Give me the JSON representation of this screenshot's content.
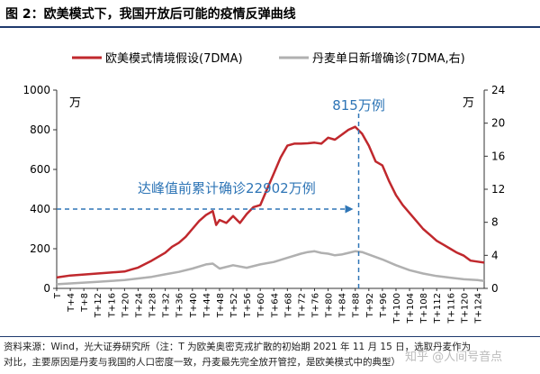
{
  "header": {
    "title": "图 2：欧美模式下，我国开放后可能的疫情反弹曲线"
  },
  "footer": {
    "line1": "资料来源：Wind，光大证券研究所（注：T 为欧美奥密克戎扩散的初始期 2021 年 11 月 15 日，选取丹麦作为",
    "line2": "对比，主要原因是丹麦与我国的人口密度一致，丹麦最先完全放开管控，是欧美模式中的典型）",
    "watermark": "知乎 @人间号音点"
  },
  "colors": {
    "red_series": "#c0282d",
    "gray_series": "#b0b0b0",
    "annotation": "#2e75b6",
    "axis": "#333333"
  },
  "chart_data": {
    "type": "line",
    "title": "图 2：欧美模式下，我国开放后可能的疫情反弹曲线",
    "left_unit": "万",
    "right_unit": "万",
    "left_ylim": [
      0,
      1000
    ],
    "left_yticks": [
      0,
      200,
      400,
      600,
      800,
      1000
    ],
    "right_ylim": [
      0,
      24
    ],
    "right_yticks": [
      0,
      4,
      8,
      12,
      16,
      20,
      24
    ],
    "x_range": [
      0,
      126
    ],
    "x_tick_labels": [
      "T",
      "T+4",
      "T+8",
      "T+12",
      "T+16",
      "T+20",
      "T+24",
      "T+28",
      "T+32",
      "T+36",
      "T+40",
      "T+44",
      "T+48",
      "T+52",
      "T+56",
      "T+60",
      "T+64",
      "T+68",
      "T+72",
      "T+76",
      "T+80",
      "T+84",
      "T+88",
      "T+92",
      "T+96",
      "T+100",
      "T+104",
      "T+108",
      "T+112",
      "T+116",
      "T+120",
      "T+124"
    ],
    "legend_position": "top",
    "series": [
      {
        "name": "欧美模式情境假设(7DMA)",
        "axis": "left",
        "color": "#c0282d",
        "x": [
          0,
          4,
          8,
          12,
          16,
          20,
          22,
          24,
          28,
          30,
          32,
          34,
          36,
          38,
          40,
          42,
          44,
          46,
          47,
          48,
          50,
          52,
          54,
          56,
          58,
          60,
          62,
          64,
          66,
          68,
          70,
          72,
          74,
          76,
          78,
          80,
          82,
          84,
          86,
          88,
          90,
          92,
          94,
          96,
          98,
          100,
          102,
          104,
          106,
          108,
          110,
          112,
          114,
          116,
          118,
          120,
          122,
          124,
          126
        ],
        "values": [
          55,
          65,
          70,
          75,
          80,
          85,
          95,
          105,
          140,
          160,
          180,
          210,
          230,
          260,
          300,
          340,
          370,
          390,
          320,
          345,
          330,
          365,
          330,
          375,
          410,
          420,
          500,
          580,
          660,
          720,
          730,
          730,
          732,
          735,
          730,
          760,
          750,
          775,
          800,
          815,
          780,
          720,
          640,
          620,
          540,
          470,
          420,
          380,
          340,
          300,
          270,
          240,
          220,
          200,
          180,
          165,
          140,
          135,
          130
        ]
      },
      {
        "name": "丹麦单日新增确诊(7DMA,右)",
        "axis": "right",
        "color": "#b0b0b0",
        "x": [
          0,
          4,
          8,
          12,
          16,
          20,
          24,
          28,
          32,
          36,
          40,
          44,
          46,
          48,
          52,
          56,
          60,
          64,
          68,
          72,
          74,
          76,
          78,
          80,
          82,
          84,
          86,
          88,
          90,
          92,
          96,
          100,
          104,
          108,
          112,
          116,
          120,
          124,
          126
        ],
        "values": [
          0.5,
          0.6,
          0.7,
          0.8,
          0.9,
          1.0,
          1.2,
          1.4,
          1.7,
          2.0,
          2.4,
          2.9,
          3.0,
          2.4,
          2.8,
          2.5,
          2.9,
          3.2,
          3.7,
          4.2,
          4.4,
          4.5,
          4.3,
          4.2,
          4.0,
          4.1,
          4.3,
          4.5,
          4.4,
          4.1,
          3.5,
          2.8,
          2.2,
          1.8,
          1.5,
          1.3,
          1.1,
          1.0,
          0.9
        ]
      }
    ],
    "annotations": {
      "peak_label": "815万例",
      "peak_x": 89,
      "peak_value": 815,
      "cumulative_label": "达峰值前累计确诊22902万例",
      "cumulative_arrow_value": 400,
      "cumulative_arrow_x": 89
    }
  }
}
